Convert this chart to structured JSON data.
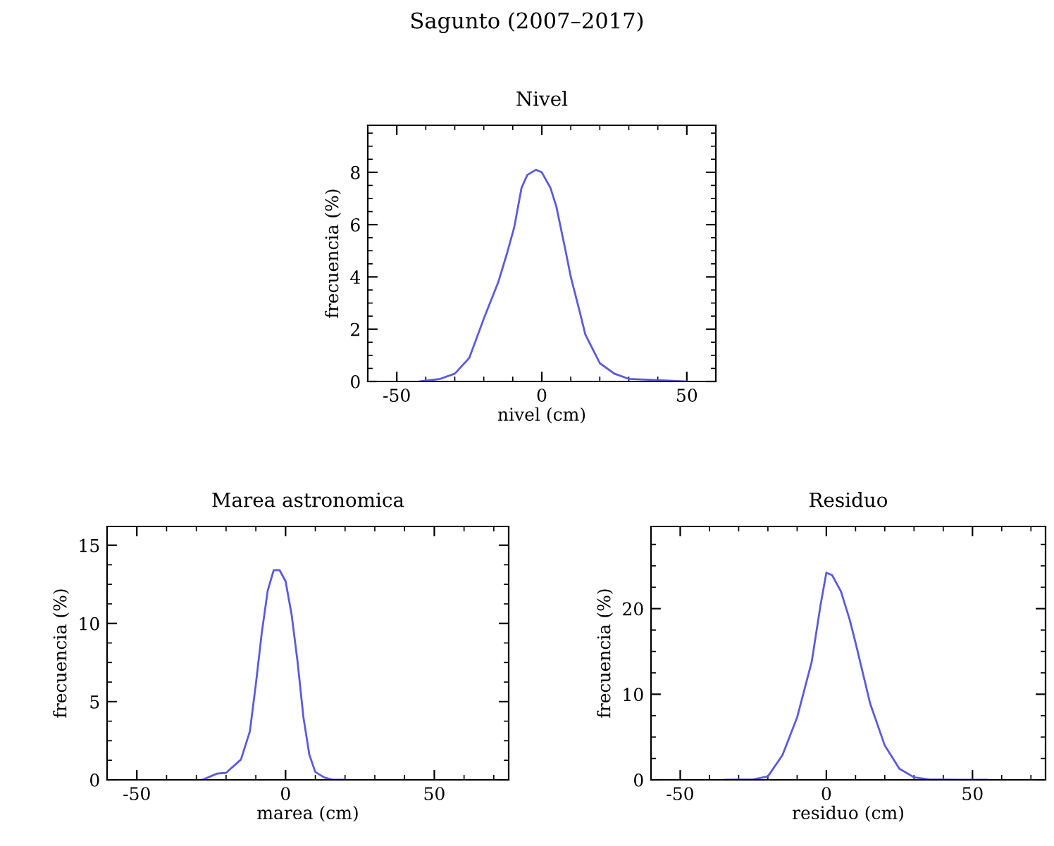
{
  "chart_data": [
    {
      "type": "line",
      "title": "Nivel",
      "xlabel": "nivel (cm)",
      "ylabel": "frecuencia (%)",
      "annotations": [
        "Sagunto (2007–2017)"
      ],
      "xlim": [
        -60,
        60
      ],
      "ylim": [
        0,
        9.8
      ],
      "xticks": [
        -50,
        0,
        50
      ],
      "yticks": [
        0,
        2,
        4,
        6,
        8
      ],
      "grid": false,
      "legend": false,
      "marker": "none",
      "line_style": "solid",
      "series": [
        {
          "color": "#5a5ae0",
          "x": [
            -42,
            -35,
            -30,
            -25,
            -20,
            -15,
            -12,
            -9.5,
            -7,
            -5,
            -2,
            0,
            3,
            5,
            8,
            10,
            13,
            15,
            20,
            25,
            30,
            40,
            50
          ],
          "values": [
            0,
            0.1,
            0.3,
            0.9,
            2.4,
            3.8,
            4.9,
            5.9,
            7.4,
            7.9,
            8.1,
            8.0,
            7.4,
            6.7,
            5.1,
            4.0,
            2.7,
            1.8,
            0.7,
            0.3,
            0.1,
            0.05,
            0
          ]
        }
      ]
    },
    {
      "type": "line",
      "title": "Marea astronomica",
      "xlabel": "marea (cm)",
      "ylabel": "frecuencia (%)",
      "xlim": [
        -60,
        75
      ],
      "ylim": [
        0,
        16.2
      ],
      "xticks": [
        -50,
        0,
        50
      ],
      "yticks": [
        0,
        5,
        10,
        15
      ],
      "grid": false,
      "legend": false,
      "marker": "none",
      "line_style": "solid",
      "series": [
        {
          "color": "#5a5ae0",
          "x": [
            -28,
            -23,
            -20,
            -15,
            -12,
            -10,
            -8,
            -6,
            -4,
            -2,
            0,
            2,
            4,
            6,
            8,
            10,
            13,
            16,
            20
          ],
          "values": [
            0,
            0.4,
            0.45,
            1.3,
            3.1,
            6.1,
            9.4,
            12.1,
            13.4,
            13.4,
            12.7,
            10.6,
            7.6,
            4.0,
            1.6,
            0.5,
            0.15,
            0,
            0
          ]
        }
      ]
    },
    {
      "type": "line",
      "title": "Residuo",
      "xlabel": "residuo (cm)",
      "ylabel": "frecuencia (%)",
      "xlim": [
        -60,
        75
      ],
      "ylim": [
        0,
        29.6
      ],
      "xticks": [
        -50,
        0,
        50
      ],
      "yticks": [
        0,
        10,
        20
      ],
      "grid": false,
      "legend": false,
      "marker": "none",
      "line_style": "solid",
      "series": [
        {
          "color": "#5a5ae0",
          "x": [
            -35,
            -25,
            -20,
            -15,
            -10,
            -5,
            -2,
            0,
            2,
            5,
            8,
            10,
            15,
            20,
            25,
            30,
            35,
            45,
            55
          ],
          "values": [
            0,
            0.05,
            0.4,
            2.9,
            7.3,
            13.8,
            20.4,
            24.2,
            23.9,
            22.0,
            18.7,
            16.0,
            8.9,
            4.0,
            1.3,
            0.3,
            0.05,
            0,
            0
          ]
        }
      ]
    }
  ]
}
